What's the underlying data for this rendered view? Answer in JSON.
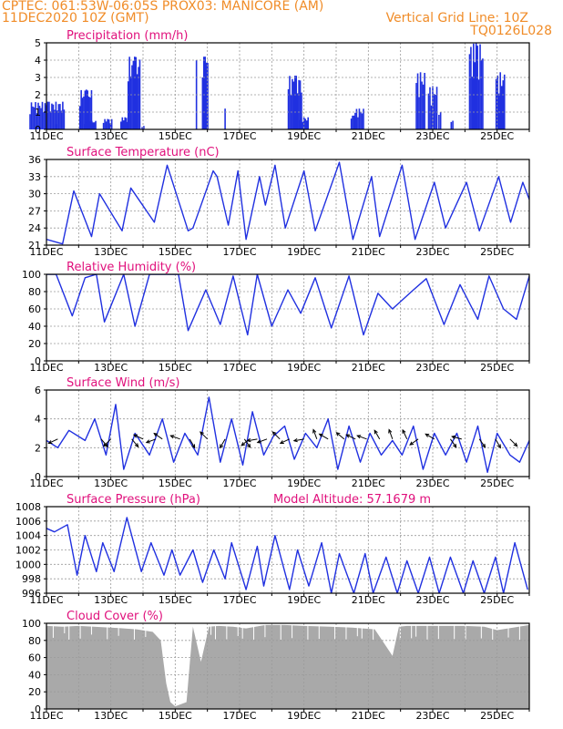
{
  "header": {
    "line1": "CPTEC:   061:53W-06:05S   PROX03: MANICORE (AM)",
    "line2_left": "11DEC2020 10Z (GMT)",
    "line2_right": "Vertical Grid Line: 10Z",
    "line3_right": "TQ0126L028"
  },
  "colors": {
    "series": "#2030e0",
    "title": "#e0107c",
    "header": "#f08c28",
    "grid": "#9a9a9a",
    "cloud": "#a9a9a9"
  },
  "chart_data": [
    {
      "type": "bar",
      "title": "Precipitation (mm/h)",
      "ylim": [
        0,
        5
      ],
      "yticks": [
        0,
        1,
        2,
        3,
        4,
        5
      ],
      "x_ticks": [
        "11DEC",
        "13DEC",
        "15DEC",
        "17DEC",
        "19DEC",
        "21DEC",
        "23DEC",
        "25DEC"
      ],
      "x_range_days": [
        0,
        15
      ],
      "events": [
        [
          0.02,
          1.1,
          1.6
        ],
        [
          0.3,
          0.05,
          0.3
        ],
        [
          1.22,
          0.4,
          2.3
        ],
        [
          1.35,
          0.4,
          0.5
        ],
        [
          1.9,
          0.3,
          0.6
        ],
        [
          2.42,
          0.25,
          0.7
        ],
        [
          2.72,
          0.4,
          4.2
        ],
        [
          3.0,
          0.1,
          0.2
        ],
        [
          4.66,
          0.05,
          4.0
        ],
        [
          4.93,
          0.2,
          4.2
        ],
        [
          5.55,
          0.05,
          1.2
        ],
        [
          7.72,
          0.45,
          3.1
        ],
        [
          8.0,
          0.3,
          0.7
        ],
        [
          9.55,
          0.2,
          0.8
        ],
        [
          9.72,
          0.3,
          1.2
        ],
        [
          11.62,
          0.3,
          3.3
        ],
        [
          12.0,
          0.3,
          2.5
        ],
        [
          12.22,
          0.1,
          1.0
        ],
        [
          12.6,
          0.1,
          0.5
        ],
        [
          13.35,
          0.45,
          5.0
        ],
        [
          14.1,
          0.3,
          3.3
        ]
      ]
    },
    {
      "type": "line",
      "title": "Surface Temperature (nC)",
      "ylim": [
        21,
        36
      ],
      "yticks": [
        21,
        24,
        27,
        30,
        33,
        36
      ],
      "x_ticks": [
        "11DEC",
        "13DEC",
        "15DEC",
        "17DEC",
        "19DEC",
        "21DEC",
        "23DEC",
        "25DEC"
      ],
      "x_range_days": [
        0,
        15
      ],
      "x": [
        0,
        0.5,
        0.85,
        1.4,
        1.65,
        2.35,
        2.62,
        3.35,
        3.75,
        4.4,
        4.55,
        5.18,
        5.3,
        5.65,
        5.95,
        6.2,
        6.62,
        6.8,
        7.1,
        7.42,
        8.0,
        8.35,
        9.1,
        9.52,
        10.1,
        10.35,
        11.05,
        11.45,
        12.05,
        12.4,
        13.05,
        13.45,
        14.05,
        14.42,
        14.8,
        15.0
      ],
      "y": [
        22,
        21.2,
        30.5,
        22.5,
        30,
        23.5,
        31,
        25,
        35,
        23.5,
        24,
        34,
        33,
        24.5,
        34,
        22,
        33,
        28,
        35,
        24,
        34,
        23.5,
        35.5,
        22,
        33,
        22.5,
        35,
        22,
        32,
        24,
        32,
        23.5,
        33,
        25,
        32,
        29
      ]
    },
    {
      "type": "line",
      "title": "Relative Humidity (%)",
      "ylim": [
        0,
        100
      ],
      "yticks": [
        0,
        20,
        40,
        60,
        80,
        100
      ],
      "x_ticks": [
        "11DEC",
        "13DEC",
        "15DEC",
        "17DEC",
        "19DEC",
        "21DEC",
        "23DEC",
        "25DEC"
      ],
      "x_range_days": [
        0,
        15
      ],
      "x": [
        0,
        0.3,
        0.8,
        1.2,
        1.55,
        1.8,
        2.4,
        2.75,
        3.2,
        3.7,
        4.1,
        4.4,
        4.95,
        5.4,
        5.8,
        6.25,
        6.55,
        7.0,
        7.5,
        7.9,
        8.35,
        8.85,
        9.4,
        9.85,
        10.3,
        10.75,
        11.4,
        11.8,
        12.35,
        12.85,
        13.4,
        13.75,
        14.2,
        14.6,
        15.0
      ],
      "y": [
        100,
        100,
        52,
        96,
        100,
        45,
        100,
        40,
        100,
        100,
        100,
        35,
        82,
        42,
        98,
        30,
        100,
        40,
        82,
        55,
        96,
        38,
        98,
        30,
        78,
        60,
        82,
        95,
        42,
        88,
        48,
        98,
        60,
        48,
        98
      ]
    },
    {
      "type": "line",
      "title": "Surface Wind (m/s)",
      "ylim": [
        0,
        6
      ],
      "yticks": [
        0,
        2,
        4,
        6
      ],
      "x_ticks": [
        "11DEC",
        "13DEC",
        "15DEC",
        "17DEC",
        "19DEC",
        "21DEC",
        "23DEC",
        "25DEC"
      ],
      "x_range_days": [
        0,
        15
      ],
      "x": [
        0,
        0.35,
        0.7,
        1.2,
        1.5,
        1.85,
        2.15,
        2.4,
        2.75,
        3.2,
        3.6,
        3.95,
        4.3,
        4.7,
        5.05,
        5.4,
        5.75,
        6.1,
        6.4,
        6.75,
        7.05,
        7.4,
        7.7,
        8.05,
        8.4,
        8.75,
        9.05,
        9.4,
        9.75,
        10.05,
        10.4,
        10.75,
        11.05,
        11.4,
        11.7,
        12.05,
        12.4,
        12.75,
        13.05,
        13.4,
        13.7,
        14.0,
        14.4,
        14.7,
        15.0
      ],
      "y": [
        2.5,
        2.0,
        3.2,
        2.5,
        4.0,
        1.5,
        5.0,
        0.5,
        3.0,
        1.5,
        4.0,
        1.0,
        3.0,
        1.5,
        5.5,
        1.0,
        4.0,
        0.8,
        4.5,
        1.5,
        2.8,
        3.5,
        1.2,
        3.0,
        2.0,
        4.0,
        0.5,
        3.5,
        1.0,
        3.0,
        1.5,
        2.5,
        1.5,
        3.5,
        0.5,
        3.0,
        1.5,
        3.0,
        1.0,
        3.5,
        0.3,
        3.0,
        1.5,
        1.0,
        2.5
      ],
      "barbs": [
        [
          0.35,
          155
        ],
        [
          1.7,
          50
        ],
        [
          2.0,
          135
        ],
        [
          2.65,
          50
        ],
        [
          3.0,
          205
        ],
        [
          3.4,
          160
        ],
        [
          3.6,
          215
        ],
        [
          4.15,
          200
        ],
        [
          4.45,
          60
        ],
        [
          5.0,
          225
        ],
        [
          5.55,
          120
        ],
        [
          6.15,
          55
        ],
        [
          6.3,
          140
        ],
        [
          6.55,
          170
        ],
        [
          6.85,
          160
        ],
        [
          7.25,
          225
        ],
        [
          7.55,
          155
        ],
        [
          8.0,
          170
        ],
        [
          8.4,
          250
        ],
        [
          8.75,
          210
        ],
        [
          9.25,
          220
        ],
        [
          9.6,
          205
        ],
        [
          9.95,
          200
        ],
        [
          10.35,
          240
        ],
        [
          10.75,
          250
        ],
        [
          11.2,
          245
        ],
        [
          11.55,
          145
        ],
        [
          12.05,
          210
        ],
        [
          12.55,
          55
        ],
        [
          12.9,
          195
        ],
        [
          13.45,
          55
        ],
        [
          13.95,
          60
        ],
        [
          14.4,
          45
        ]
      ]
    },
    {
      "type": "line",
      "title": "Surface Pressure (hPa)",
      "subtitle": "Model Altitude: 57.1679 m",
      "ylim": [
        996,
        1008
      ],
      "yticks": [
        996,
        998,
        1000,
        1002,
        1004,
        1006,
        1008
      ],
      "x_ticks": [
        "11DEC",
        "13DEC",
        "15DEC",
        "17DEC",
        "19DEC",
        "21DEC",
        "23DEC",
        "25DEC"
      ],
      "x_range_days": [
        0,
        15
      ],
      "x": [
        0,
        0.25,
        0.65,
        0.95,
        1.2,
        1.55,
        1.75,
        2.1,
        2.5,
        2.95,
        3.25,
        3.65,
        3.9,
        4.15,
        4.55,
        4.85,
        5.2,
        5.55,
        5.75,
        6.2,
        6.55,
        6.75,
        7.1,
        7.55,
        7.8,
        8.15,
        8.55,
        8.85,
        9.1,
        9.55,
        9.9,
        10.15,
        10.55,
        10.9,
        11.2,
        11.55,
        11.9,
        12.2,
        12.55,
        12.95,
        13.25,
        13.6,
        13.95,
        14.2,
        14.55,
        14.95
      ],
      "y": [
        1005,
        1004.5,
        1005.5,
        998.5,
        1004,
        999,
        1003,
        999,
        1006.5,
        999,
        1003,
        998.5,
        1002,
        998.5,
        1002,
        997.5,
        1002,
        998,
        1003,
        996.5,
        1002.5,
        997,
        1004,
        996.5,
        1002,
        997,
        1003,
        996,
        1001.5,
        996,
        1001.5,
        996,
        1001,
        996,
        1000.5,
        996,
        1001,
        996,
        1001,
        996,
        1000.5,
        996,
        1001,
        996,
        1003,
        996.5
      ]
    },
    {
      "type": "area",
      "title": "Cloud Cover (%)",
      "ylim": [
        0,
        100
      ],
      "yticks": [
        0,
        20,
        40,
        60,
        80,
        100
      ],
      "x_ticks": [
        "11DEC",
        "13DEC",
        "15DEC",
        "17DEC",
        "19DEC",
        "21DEC",
        "23DEC",
        "25DEC"
      ],
      "x_range_days": [
        0,
        15
      ],
      "x": [
        0,
        0.5,
        1.0,
        2.0,
        2.8,
        3.3,
        3.55,
        3.72,
        3.85,
        4.0,
        4.35,
        4.55,
        4.8,
        5.05,
        5.35,
        5.8,
        6.2,
        6.8,
        7.4,
        8.0,
        8.8,
        9.5,
        10.2,
        10.75,
        10.95,
        11.2,
        12.0,
        13.0,
        13.6,
        14.0,
        14.5,
        15.0
      ],
      "y": [
        97,
        96,
        97,
        95,
        93,
        90,
        80,
        30,
        8,
        3,
        8,
        96,
        55,
        96,
        97,
        96,
        94,
        98,
        98,
        97,
        96,
        95,
        93,
        62,
        96,
        97,
        97,
        97,
        96,
        92,
        95,
        98
      ]
    }
  ]
}
